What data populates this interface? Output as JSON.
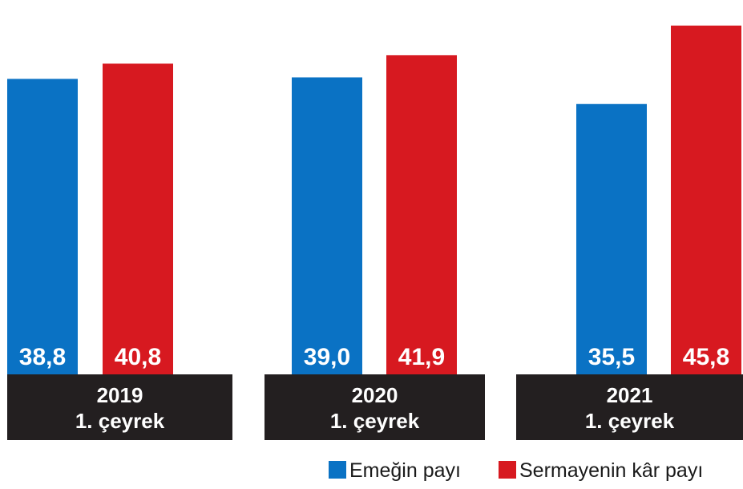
{
  "chart_data": {
    "type": "bar",
    "categories": [
      [
        "2019",
        "1. çeyrek"
      ],
      [
        "2020",
        "1. çeyrek"
      ],
      [
        "2021",
        "1. çeyrek"
      ]
    ],
    "series": [
      {
        "name": "Emeğin payı",
        "color": "#0a72c4",
        "values": [
          38.8,
          39.0,
          35.5
        ],
        "labels": [
          "38,8",
          "39,0",
          "35,5"
        ]
      },
      {
        "name": "Sermayenin kâr payı",
        "color": "#d71920",
        "values": [
          40.8,
          41.9,
          45.8
        ],
        "labels": [
          "40,8",
          "41,9",
          "45,8"
        ]
      }
    ],
    "category_band_color": "#231f20",
    "legend_position": "bottom-right"
  }
}
